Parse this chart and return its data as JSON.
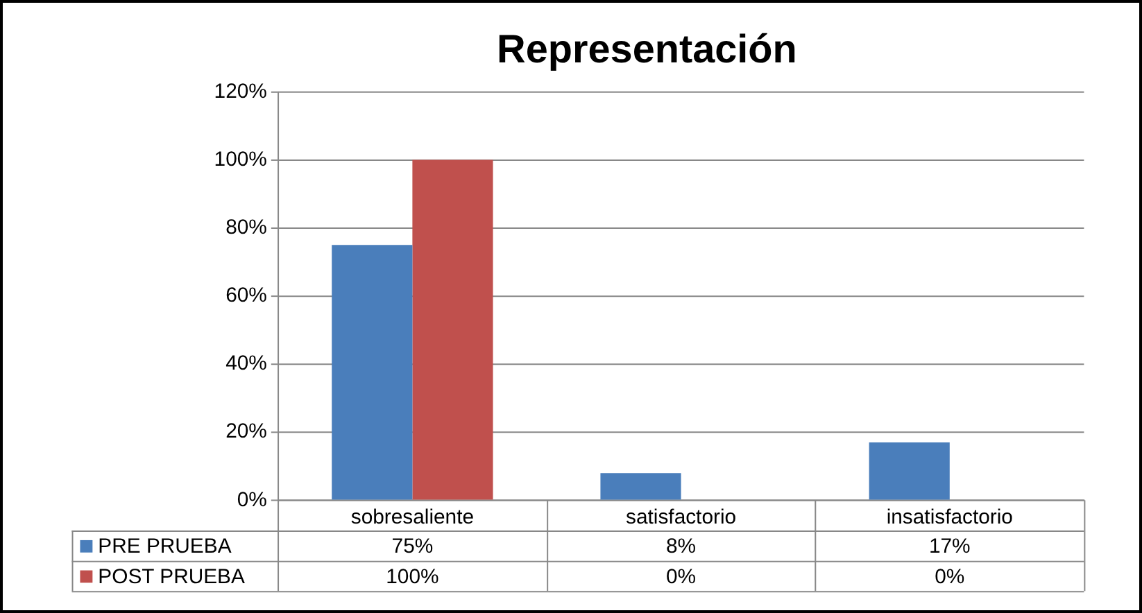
{
  "chart_data": {
    "type": "bar",
    "title": "Representación",
    "categories": [
      "sobresaliente",
      "satisfactorio",
      "insatisfactorio"
    ],
    "series": [
      {
        "name": "PRE PRUEBA",
        "color": "#4a7ebb",
        "values": [
          75,
          8,
          17
        ],
        "value_labels": [
          "75%",
          "8%",
          "17%"
        ]
      },
      {
        "name": "POST PRUEBA",
        "color": "#c0504d",
        "values": [
          100,
          0,
          0
        ],
        "value_labels": [
          "100%",
          "0%",
          "0%"
        ]
      }
    ],
    "ylim": [
      0,
      120
    ],
    "yticks": [
      {
        "value": 0,
        "label": "0%"
      },
      {
        "value": 20,
        "label": "20%"
      },
      {
        "value": 40,
        "label": "40%"
      },
      {
        "value": 60,
        "label": "60%"
      },
      {
        "value": 80,
        "label": "80%"
      },
      {
        "value": 100,
        "label": "100%"
      },
      {
        "value": 120,
        "label": "120%"
      }
    ],
    "grid": "y",
    "legend": "bottom"
  }
}
